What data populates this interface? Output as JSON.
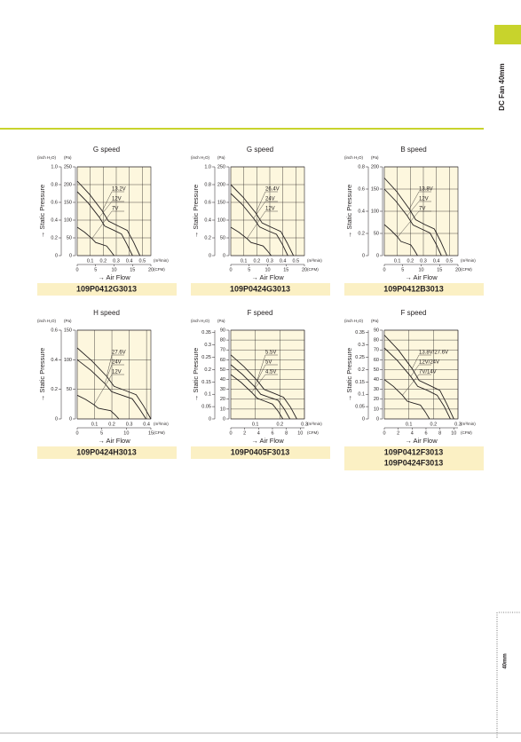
{
  "header": {
    "tab": "DC Fan 40mm"
  },
  "footer": {
    "tab": "40mm"
  },
  "chart_data": [
    {
      "type": "line",
      "title": "G speed",
      "ylabel": "→ Static Pressure",
      "xlabel": "→ Air Flow",
      "y2unit": "(inch H₂O)",
      "yunit": "(Pa)",
      "x2unit": "(m³/min)",
      "xunit": "(CFM)",
      "color": "#231f20",
      "ylim": [
        0,
        250
      ],
      "yticks": [
        0,
        50,
        100,
        150,
        200,
        250
      ],
      "y2lim": [
        0,
        1.0
      ],
      "y2ticks": [
        0,
        0.2,
        0.4,
        0.6,
        0.8,
        {
          "value": 1,
          "label": "1.0"
        }
      ],
      "xlim": [
        0,
        20
      ],
      "xticks": [
        0,
        5,
        10,
        15,
        20
      ],
      "x2lim": [
        0,
        0.566
      ],
      "x2ticks": [
        0.1,
        0.2,
        0.3,
        0.4,
        0.5
      ],
      "series": [
        {
          "name": "13.2V",
          "x": [
            0,
            3.4,
            6.8,
            8.5,
            11,
            13.6,
            15.3,
            17
          ],
          "values": [
            210,
            172,
            126,
            97,
            84,
            71,
            38,
            0
          ]
        },
        {
          "name": "12V",
          "x": [
            0,
            3,
            6,
            7.5,
            9.8,
            12,
            13.5,
            15
          ],
          "values": [
            180,
            148,
            108,
            83,
            72,
            61,
            32,
            0
          ]
        },
        {
          "name": "7V",
          "x": [
            0,
            2,
            4,
            5,
            6.5,
            8,
            9,
            10
          ],
          "values": [
            80,
            66,
            48,
            37,
            32,
            27,
            14,
            0
          ]
        }
      ],
      "models": [
        "109P0412G3013"
      ]
    },
    {
      "type": "line",
      "title": "G speed",
      "ylabel": "→ Static Pressure",
      "xlabel": "→ Air Flow",
      "y2unit": "(inch H₂O)",
      "yunit": "(Pa)",
      "x2unit": "(m³/min)",
      "xunit": "(CFM)",
      "color": "#231f20",
      "ylim": [
        0,
        250
      ],
      "yticks": [
        0,
        50,
        100,
        150,
        200,
        250
      ],
      "y2lim": [
        0,
        1.0
      ],
      "y2ticks": [
        0,
        0.2,
        0.4,
        0.6,
        0.8,
        {
          "value": 1,
          "label": "1.0"
        }
      ],
      "xlim": [
        0,
        20
      ],
      "xticks": [
        0,
        5,
        10,
        15,
        20
      ],
      "x2lim": [
        0,
        0.566
      ],
      "x2ticks": [
        0.1,
        0.2,
        0.3,
        0.4,
        0.5
      ],
      "series": [
        {
          "name": "26.4V",
          "x": [
            0,
            3.4,
            6.8,
            8.5,
            11,
            13.6,
            15.3,
            17
          ],
          "values": [
            200,
            164,
            120,
            92,
            80,
            68,
            36,
            0
          ]
        },
        {
          "name": "24V",
          "x": [
            0,
            3.1,
            6.2,
            7.8,
            10.1,
            12.4,
            14,
            15.5
          ],
          "values": [
            175,
            144,
            105,
            81,
            70,
            60,
            32,
            0
          ]
        },
        {
          "name": "12V",
          "x": [
            0,
            2.2,
            4.4,
            5.5,
            7.2,
            8.8,
            9.9,
            11
          ],
          "values": [
            80,
            66,
            48,
            37,
            32,
            27,
            14,
            0
          ]
        }
      ],
      "models": [
        "109P0424G3013"
      ]
    },
    {
      "type": "line",
      "title": "B speed",
      "ylabel": "→ Static Pressure",
      "xlabel": "→ Air Flow",
      "y2unit": "(inch H₂O)",
      "yunit": "(Pa)",
      "x2unit": "(m³/min)",
      "xunit": "(CFM)",
      "color": "#231f20",
      "ylim": [
        0,
        200
      ],
      "yticks": [
        0,
        50,
        100,
        150,
        200
      ],
      "y2lim": [
        0,
        0.8
      ],
      "y2ticks": [
        0,
        0.2,
        0.4,
        0.6,
        0.8
      ],
      "xlim": [
        0,
        20
      ],
      "xticks": [
        0,
        5,
        10,
        15,
        20
      ],
      "x2lim": [
        0,
        0.566
      ],
      "x2ticks": [
        0.1,
        0.2,
        0.3,
        0.4,
        0.5
      ],
      "series": [
        {
          "name": "13.8V",
          "x": [
            0,
            3.4,
            6.8,
            8.5,
            11,
            13.6,
            15.3,
            17
          ],
          "values": [
            175,
            144,
            105,
            81,
            70,
            60,
            32,
            0
          ]
        },
        {
          "name": "12V",
          "x": [
            0,
            3.1,
            6.2,
            7.8,
            10.1,
            12.4,
            14,
            15.5
          ],
          "values": [
            150,
            123,
            90,
            69,
            60,
            51,
            27,
            0
          ]
        },
        {
          "name": "7V",
          "x": [
            0,
            1.8,
            3.6,
            4.5,
            5.9,
            7.2,
            8.1,
            9
          ],
          "values": [
            70,
            57,
            42,
            32,
            28,
            24,
            13,
            0
          ]
        }
      ],
      "models": [
        "109P0412B3013"
      ]
    },
    {
      "type": "line",
      "title": "H speed",
      "ylabel": "→ Static Pressure",
      "xlabel": "→ Air Flow",
      "y2unit": "(inch H₂O)",
      "yunit": "(Pa)",
      "x2unit": "(m³/min)",
      "xunit": "(CFM)",
      "color": "#231f20",
      "ylim": [
        0,
        150
      ],
      "yticks": [
        0,
        50,
        100,
        150
      ],
      "y2lim": [
        0,
        0.6
      ],
      "y2ticks": [
        0,
        0.2,
        0.4,
        0.6
      ],
      "xlim": [
        0,
        15
      ],
      "xticks": [
        0,
        5,
        10,
        15
      ],
      "x2lim": [
        0,
        0.425
      ],
      "x2ticks": [
        0.1,
        0.2,
        0.3,
        0.4
      ],
      "series": [
        {
          "name": "27.6V",
          "x": [
            0,
            3,
            6,
            7.5,
            9.8,
            12,
            13.5,
            15
          ],
          "values": [
            120,
            98,
            72,
            55,
            48,
            41,
            22,
            0
          ]
        },
        {
          "name": "24V",
          "x": [
            0,
            2.8,
            5.6,
            7,
            9.1,
            11.2,
            12.6,
            14
          ],
          "values": [
            100,
            82,
            60,
            46,
            40,
            34,
            18,
            0
          ]
        },
        {
          "name": "12V",
          "x": [
            0,
            1.7,
            3.4,
            4.3,
            5.5,
            6.8,
            7.7,
            8.5
          ],
          "values": [
            40,
            33,
            24,
            18,
            16,
            14,
            7,
            0
          ]
        }
      ],
      "models": [
        "109P0424H3013"
      ]
    },
    {
      "type": "line",
      "title": "F speed",
      "ylabel": "→ Static Pressure",
      "xlabel": "→ Air Flow",
      "y2unit": "(inch H₂O)",
      "yunit": "(Pa)",
      "x2unit": "(m³/min)",
      "xunit": "(CFM)",
      "color": "#231f20",
      "ylim": [
        0,
        90
      ],
      "yticks": [
        0,
        10,
        20,
        30,
        40,
        50,
        60,
        70,
        80,
        90
      ],
      "y2lim": [
        0,
        0.36
      ],
      "y2ticks": [
        0,
        0.05,
        0.1,
        0.15,
        0.2,
        0.25,
        0.3,
        0.35
      ],
      "xlim": [
        0,
        10.6
      ],
      "xticks": [
        0,
        2,
        4,
        6,
        8,
        10
      ],
      "x2lim": [
        0,
        0.3
      ],
      "x2ticks": [
        0.1,
        0.2,
        0.3
      ],
      "series": [
        {
          "name": "5.5V",
          "x": [
            0,
            1.9,
            3.8,
            4.8,
            6.2,
            7.6,
            8.6,
            9.5
          ],
          "values": [
            65,
            53,
            39,
            30,
            26,
            22,
            12,
            0
          ]
        },
        {
          "name": "5V",
          "x": [
            0,
            1.7,
            3.4,
            4.3,
            5.5,
            6.8,
            7.7,
            8.5
          ],
          "values": [
            55,
            45,
            33,
            25,
            22,
            19,
            10,
            0
          ]
        },
        {
          "name": "4.5V",
          "x": [
            0,
            1.5,
            3,
            3.8,
            4.9,
            6,
            6.8,
            7.5
          ],
          "values": [
            45,
            37,
            27,
            21,
            18,
            15,
            8,
            0
          ]
        }
      ],
      "models": [
        "109P0405F3013"
      ]
    },
    {
      "type": "line",
      "title": "F speed",
      "ylabel": "→ Static Pressure",
      "xlabel": "→ Air Flow",
      "y2unit": "(inch H₂O)",
      "yunit": "(Pa)",
      "x2unit": "(m³/min)",
      "xunit": "(CFM)",
      "color": "#231f20",
      "ylim": [
        0,
        90
      ],
      "yticks": [
        0,
        10,
        20,
        30,
        40,
        50,
        60,
        70,
        80,
        90
      ],
      "y2lim": [
        0,
        0.36
      ],
      "y2ticks": [
        0,
        0.05,
        0.1,
        0.15,
        0.2,
        0.25,
        0.3,
        0.35
      ],
      "xlim": [
        0,
        10.6
      ],
      "xticks": [
        0,
        2,
        4,
        6,
        8,
        10
      ],
      "x2lim": [
        0,
        0.3
      ],
      "x2ticks": [
        0.1,
        0.2,
        0.3
      ],
      "series": [
        {
          "name": "13.8V/27.6V",
          "x": [
            0,
            2,
            4,
            5,
            6.5,
            8,
            9,
            10
          ],
          "values": [
            85,
            70,
            51,
            39,
            34,
            29,
            15,
            0
          ]
        },
        {
          "name": "12V/24V",
          "x": [
            0,
            1.9,
            3.8,
            4.8,
            6.2,
            7.6,
            8.6,
            9.5
          ],
          "values": [
            72,
            59,
            43,
            33,
            29,
            24,
            13,
            0
          ]
        },
        {
          "name": "7V/14V",
          "x": [
            0,
            1.3,
            2.6,
            3.3,
            4.2,
            5.2,
            5.9,
            6.5
          ],
          "values": [
            40,
            33,
            24,
            18,
            16,
            14,
            7,
            0
          ]
        }
      ],
      "models": [
        "109P0412F3013",
        "109P0424F3013"
      ]
    }
  ]
}
